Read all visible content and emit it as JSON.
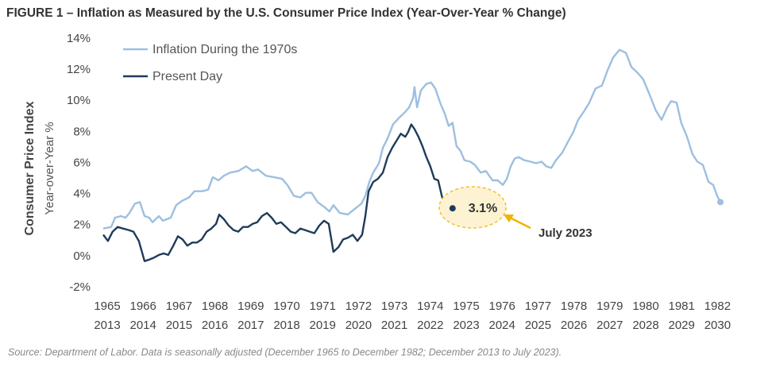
{
  "chart_data": {
    "type": "line",
    "title": "FIGURE 1 – Inflation as Measured by the U.S. Consumer Price Index (Year-Over-Year % Change)",
    "y_label": "Consumer Price Index",
    "y_sublabel": "Year-over-Year  %",
    "source": "Source: Department of Labor. Data is seasonally adjusted (December 1965 to December 1982; December 2013 to July 2023).",
    "xlim": [
      1964.8,
      1982.2
    ],
    "xticks": [
      1965,
      1966,
      1967,
      1968,
      1969,
      1970,
      1971,
      1972,
      1973,
      1974,
      1975,
      1976,
      1977,
      1978,
      1979,
      1980,
      1981,
      1982
    ],
    "xticks_present": [
      2013,
      2014,
      2015,
      2016,
      2017,
      2018,
      2019,
      2020,
      2021,
      2022,
      2023,
      2024,
      2025,
      2026,
      2027,
      2028,
      2029,
      2030
    ],
    "ylim": [
      -2,
      14
    ],
    "yticks": [
      {
        "value": -2,
        "label": "-2%"
      },
      {
        "value": 0,
        "label": "0%"
      },
      {
        "value": 2,
        "label": "2%"
      },
      {
        "value": 4,
        "label": "4%"
      },
      {
        "value": 6,
        "label": "6%"
      },
      {
        "value": 8,
        "label": "8%"
      },
      {
        "value": 10,
        "label": "10%"
      },
      {
        "value": 12,
        "label": "12%"
      },
      {
        "value": 14,
        "label": "14%"
      }
    ],
    "grid": false,
    "legend": "upper left",
    "series": [
      {
        "name": "Inflation During the 1970s",
        "color": "#9dbfe0",
        "x": [
          1964.89,
          1965.11,
          1965.22,
          1965.38,
          1965.51,
          1965.62,
          1965.77,
          1965.91,
          1966.04,
          1966.17,
          1966.26,
          1966.44,
          1966.55,
          1966.77,
          1966.92,
          1967.1,
          1967.28,
          1967.43,
          1967.65,
          1967.81,
          1967.94,
          1968.1,
          1968.25,
          1968.43,
          1968.65,
          1968.87,
          1969.05,
          1969.2,
          1969.42,
          1969.65,
          1969.87,
          1970.02,
          1970.2,
          1970.38,
          1970.53,
          1970.69,
          1970.86,
          1971.04,
          1971.19,
          1971.3,
          1971.48,
          1971.7,
          1971.86,
          1971.97,
          1972.08,
          1972.19,
          1972.3,
          1972.41,
          1972.57,
          1972.68,
          1972.81,
          1972.96,
          1973.12,
          1973.3,
          1973.41,
          1973.52,
          1973.56,
          1973.63,
          1973.74,
          1973.89,
          1974.02,
          1974.14,
          1974.29,
          1974.4,
          1974.51,
          1974.62,
          1974.73,
          1974.84,
          1974.95,
          1975.11,
          1975.24,
          1975.4,
          1975.55,
          1975.73,
          1975.88,
          1976.02,
          1976.13,
          1976.24,
          1976.35,
          1976.46,
          1976.61,
          1976.79,
          1976.95,
          1977.1,
          1977.23,
          1977.37,
          1977.5,
          1977.68,
          1977.86,
          1977.98,
          1978.12,
          1978.27,
          1978.43,
          1978.6,
          1978.78,
          1978.94,
          1979.09,
          1979.27,
          1979.45,
          1979.6,
          1979.78,
          1979.93,
          1980.11,
          1980.28,
          1980.44,
          1980.6,
          1980.71,
          1980.86,
          1980.99,
          1981.15,
          1981.3,
          1981.44,
          1981.59,
          1981.75,
          1981.88,
          1981.99,
          1982.08
        ],
        "values": [
          1.8,
          1.9,
          2.5,
          2.6,
          2.5,
          2.8,
          3.4,
          3.5,
          2.6,
          2.5,
          2.2,
          2.6,
          2.3,
          2.5,
          3.3,
          3.6,
          3.8,
          4.2,
          4.2,
          4.3,
          5.1,
          4.9,
          5.2,
          5.4,
          5.5,
          5.8,
          5.5,
          5.6,
          5.2,
          5.1,
          5.0,
          4.6,
          3.9,
          3.8,
          4.1,
          4.1,
          3.5,
          3.2,
          2.9,
          3.3,
          2.8,
          2.7,
          3.0,
          3.2,
          3.4,
          3.9,
          4.8,
          5.4,
          6.0,
          7.0,
          7.6,
          8.5,
          8.9,
          9.3,
          9.6,
          10.2,
          10.9,
          9.6,
          10.7,
          11.1,
          11.2,
          10.8,
          9.8,
          9.2,
          8.4,
          8.6,
          7.1,
          6.8,
          6.2,
          6.1,
          5.9,
          5.4,
          5.5,
          4.9,
          4.9,
          4.6,
          5.0,
          5.8,
          6.3,
          6.4,
          6.2,
          6.1,
          6.0,
          6.1,
          5.8,
          5.7,
          6.2,
          6.7,
          7.5,
          8.0,
          8.8,
          9.3,
          9.9,
          10.8,
          11.0,
          12.0,
          12.8,
          13.3,
          13.1,
          12.2,
          11.8,
          11.4,
          10.4,
          9.4,
          8.8,
          9.6,
          10.0,
          9.9,
          8.6,
          7.7,
          6.6,
          6.1,
          5.9,
          4.8,
          4.6,
          3.9,
          3.5
        ]
      },
      {
        "name": "Present Day",
        "color": "#1f3b5a",
        "x": [
          2012.89,
          2013.02,
          2013.15,
          2013.29,
          2013.44,
          2013.6,
          2013.73,
          2013.88,
          2014.04,
          2014.17,
          2014.28,
          2014.44,
          2014.57,
          2014.7,
          2014.84,
          2014.97,
          2015.1,
          2015.23,
          2015.37,
          2015.5,
          2015.63,
          2015.77,
          2015.9,
          2016.03,
          2016.12,
          2016.25,
          2016.38,
          2016.52,
          2016.65,
          2016.78,
          2016.92,
          2017.05,
          2017.18,
          2017.31,
          2017.45,
          2017.58,
          2017.71,
          2017.84,
          2017.98,
          2018.11,
          2018.24,
          2018.38,
          2018.51,
          2018.64,
          2018.77,
          2018.91,
          2019.04,
          2019.17,
          2019.3,
          2019.44,
          2019.57,
          2019.7,
          2019.84,
          2019.97,
          2020.1,
          2020.19,
          2020.28,
          2020.41,
          2020.54,
          2020.68,
          2020.81,
          2020.94,
          2021.07,
          2021.18,
          2021.3,
          2021.38,
          2021.47,
          2021.56,
          2021.67,
          2021.78,
          2021.89,
          2022.0,
          2022.11,
          2022.22,
          2022.31,
          2022.42,
          2022.51,
          2022.62
        ],
        "values": [
          1.4,
          1.0,
          1.6,
          1.9,
          1.8,
          1.7,
          1.6,
          1.0,
          -0.3,
          -0.2,
          -0.1,
          0.1,
          0.2,
          0.1,
          0.7,
          1.3,
          1.1,
          0.7,
          0.9,
          0.9,
          1.1,
          1.6,
          1.8,
          2.1,
          2.7,
          2.4,
          2.0,
          1.7,
          1.6,
          1.9,
          1.9,
          2.1,
          2.2,
          2.6,
          2.8,
          2.5,
          2.1,
          2.2,
          1.9,
          1.6,
          1.5,
          1.8,
          1.7,
          1.6,
          1.5,
          2.0,
          2.3,
          2.1,
          0.3,
          0.6,
          1.1,
          1.2,
          1.4,
          1.0,
          1.4,
          2.6,
          4.2,
          4.8,
          5.0,
          5.4,
          6.4,
          7.0,
          7.5,
          7.9,
          7.7,
          8.0,
          8.5,
          8.2,
          7.7,
          7.1,
          6.4,
          5.8,
          5.0,
          4.9,
          4.0,
          3.0,
          3.1,
          3.1
        ]
      }
    ],
    "annotations": [
      {
        "text": "3.1%"
      },
      {
        "text": "July 2023"
      }
    ]
  }
}
